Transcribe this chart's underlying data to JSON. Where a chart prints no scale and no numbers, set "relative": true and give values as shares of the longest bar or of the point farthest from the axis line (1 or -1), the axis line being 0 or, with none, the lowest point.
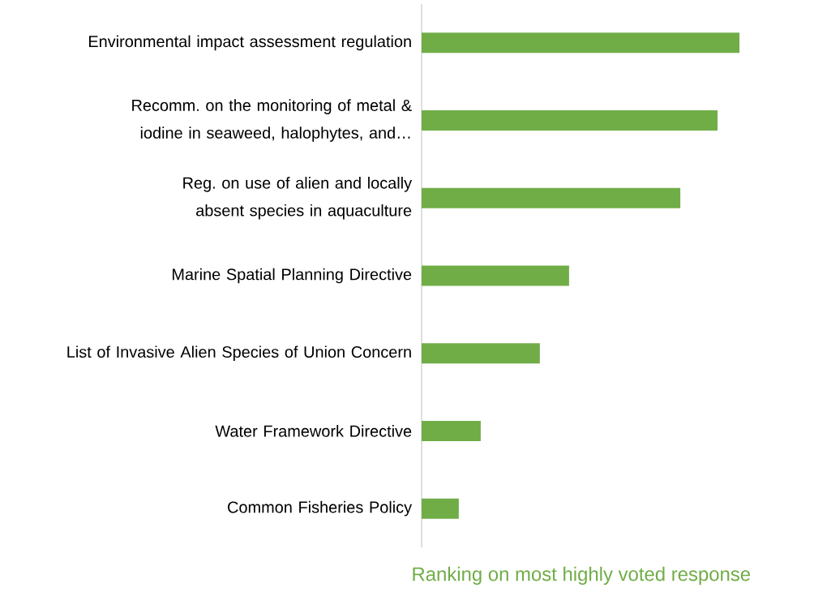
{
  "chart_data": {
    "type": "bar",
    "orientation": "horizontal",
    "relative": true,
    "xlabel": "Ranking on most highly voted response",
    "categories": [
      "Environmental impact assessment regulation",
      "Recomm. on the monitoring of metal & iodine in seaweed, halophytes, and…",
      "Reg. on use of alien and locally absent species in aquaculture",
      "Marine Spatial Planning Directive",
      "List of Invasive Alien Species of Union Concern",
      "Water Framework Directive",
      "Common Fisheries Policy"
    ],
    "values": [
      1,
      0.931,
      0.814,
      0.464,
      0.372,
      0.186,
      0.117
    ],
    "color": "#70ad47"
  }
}
